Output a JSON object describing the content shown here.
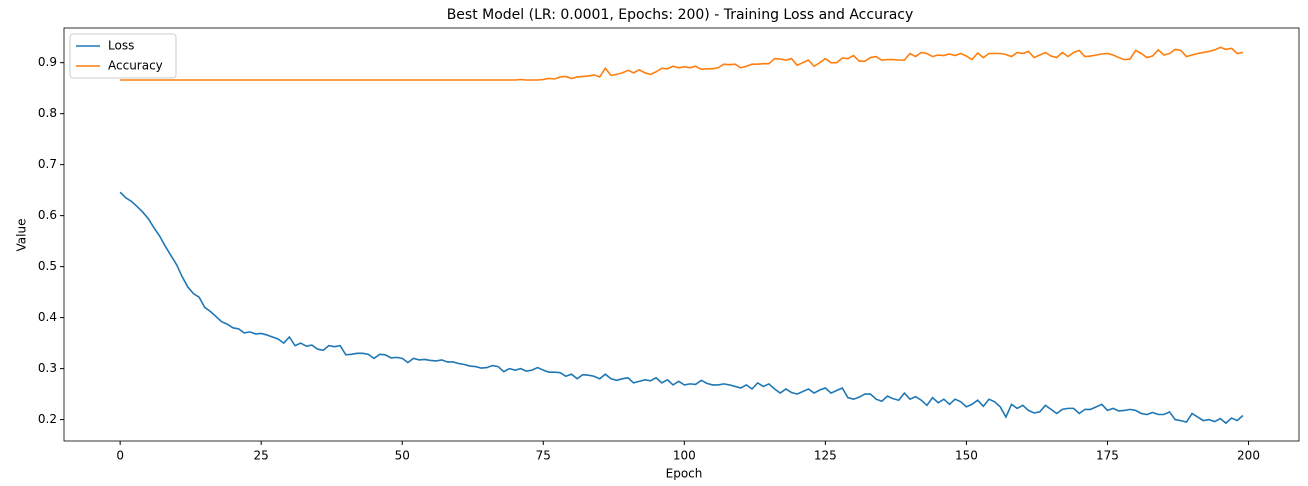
{
  "chart_data": {
    "type": "line",
    "title": "Best Model (LR: 0.0001, Epochs: 200) - Training Loss and Accuracy",
    "x_label": "Epoch",
    "y_label": "Value",
    "x": [
      0,
      1,
      2,
      3,
      4,
      5,
      6,
      7,
      8,
      9,
      10,
      11,
      12,
      13,
      14,
      15,
      16,
      17,
      18,
      19,
      20,
      21,
      22,
      23,
      24,
      25,
      26,
      27,
      28,
      29,
      30,
      31,
      32,
      33,
      34,
      35,
      36,
      37,
      38,
      39,
      40,
      41,
      42,
      43,
      44,
      45,
      46,
      47,
      48,
      49,
      50,
      51,
      52,
      53,
      54,
      55,
      56,
      57,
      58,
      59,
      60,
      61,
      62,
      63,
      64,
      65,
      66,
      67,
      68,
      69,
      70,
      71,
      72,
      73,
      74,
      75,
      76,
      77,
      78,
      79,
      80,
      81,
      82,
      83,
      84,
      85,
      86,
      87,
      88,
      89,
      90,
      91,
      92,
      93,
      94,
      95,
      96,
      97,
      98,
      99,
      100,
      101,
      102,
      103,
      104,
      105,
      106,
      107,
      108,
      109,
      110,
      111,
      112,
      113,
      114,
      115,
      116,
      117,
      118,
      119,
      120,
      121,
      122,
      123,
      124,
      125,
      126,
      127,
      128,
      129,
      130,
      131,
      132,
      133,
      134,
      135,
      136,
      137,
      138,
      139,
      140,
      141,
      142,
      143,
      144,
      145,
      146,
      147,
      148,
      149,
      150,
      151,
      152,
      153,
      154,
      155,
      156,
      157,
      158,
      159,
      160,
      161,
      162,
      163,
      164,
      165,
      166,
      167,
      168,
      169,
      170,
      171,
      172,
      173,
      174,
      175,
      176,
      177,
      178,
      179,
      180,
      181,
      182,
      183,
      184,
      185,
      186,
      187,
      188,
      189,
      190,
      191,
      192,
      193,
      194,
      195,
      196,
      197,
      198,
      199
    ],
    "series": [
      {
        "name": "Loss",
        "color": "#1f77b4",
        "values": [
          0.646,
          0.635,
          0.628,
          0.618,
          0.607,
          0.594,
          0.576,
          0.56,
          0.54,
          0.522,
          0.504,
          0.48,
          0.46,
          0.447,
          0.44,
          0.42,
          0.412,
          0.402,
          0.392,
          0.387,
          0.38,
          0.378,
          0.37,
          0.372,
          0.368,
          0.369,
          0.366,
          0.362,
          0.358,
          0.35,
          0.362,
          0.345,
          0.35,
          0.344,
          0.346,
          0.338,
          0.336,
          0.345,
          0.343,
          0.345,
          0.327,
          0.328,
          0.33,
          0.33,
          0.328,
          0.32,
          0.328,
          0.327,
          0.321,
          0.322,
          0.32,
          0.312,
          0.32,
          0.317,
          0.318,
          0.316,
          0.315,
          0.317,
          0.313,
          0.313,
          0.31,
          0.308,
          0.305,
          0.304,
          0.301,
          0.302,
          0.306,
          0.304,
          0.294,
          0.3,
          0.297,
          0.3,
          0.295,
          0.297,
          0.302,
          0.297,
          0.293,
          0.293,
          0.292,
          0.285,
          0.289,
          0.28,
          0.288,
          0.287,
          0.285,
          0.28,
          0.289,
          0.28,
          0.277,
          0.28,
          0.282,
          0.272,
          0.275,
          0.278,
          0.276,
          0.282,
          0.272,
          0.278,
          0.268,
          0.275,
          0.268,
          0.27,
          0.269,
          0.277,
          0.271,
          0.268,
          0.268,
          0.27,
          0.268,
          0.265,
          0.262,
          0.268,
          0.26,
          0.272,
          0.265,
          0.27,
          0.26,
          0.252,
          0.26,
          0.253,
          0.25,
          0.255,
          0.26,
          0.252,
          0.258,
          0.262,
          0.252,
          0.257,
          0.262,
          0.243,
          0.24,
          0.244,
          0.25,
          0.25,
          0.24,
          0.236,
          0.246,
          0.241,
          0.238,
          0.252,
          0.24,
          0.245,
          0.238,
          0.228,
          0.243,
          0.233,
          0.24,
          0.23,
          0.24,
          0.235,
          0.225,
          0.23,
          0.238,
          0.226,
          0.24,
          0.235,
          0.225,
          0.205,
          0.23,
          0.222,
          0.228,
          0.218,
          0.213,
          0.215,
          0.228,
          0.22,
          0.212,
          0.22,
          0.222,
          0.222,
          0.212,
          0.22,
          0.22,
          0.225,
          0.23,
          0.218,
          0.222,
          0.217,
          0.218,
          0.22,
          0.218,
          0.212,
          0.21,
          0.214,
          0.21,
          0.21,
          0.215,
          0.2,
          0.198,
          0.195,
          0.212,
          0.205,
          0.198,
          0.2,
          0.196,
          0.202,
          0.193,
          0.203,
          0.198,
          0.208
        ]
      },
      {
        "name": "Accuracy",
        "color": "#ff7f0e",
        "values": [
          0.866,
          0.866,
          0.866,
          0.866,
          0.866,
          0.866,
          0.866,
          0.866,
          0.866,
          0.866,
          0.866,
          0.866,
          0.866,
          0.866,
          0.866,
          0.866,
          0.866,
          0.866,
          0.866,
          0.866,
          0.866,
          0.866,
          0.866,
          0.866,
          0.866,
          0.866,
          0.866,
          0.866,
          0.866,
          0.866,
          0.866,
          0.866,
          0.866,
          0.866,
          0.866,
          0.866,
          0.866,
          0.866,
          0.866,
          0.866,
          0.866,
          0.866,
          0.866,
          0.866,
          0.866,
          0.866,
          0.866,
          0.866,
          0.866,
          0.866,
          0.866,
          0.866,
          0.866,
          0.866,
          0.866,
          0.866,
          0.866,
          0.866,
          0.866,
          0.866,
          0.866,
          0.866,
          0.866,
          0.866,
          0.866,
          0.866,
          0.866,
          0.866,
          0.866,
          0.866,
          0.866,
          0.867,
          0.866,
          0.866,
          0.866,
          0.867,
          0.869,
          0.868,
          0.872,
          0.873,
          0.869,
          0.872,
          0.873,
          0.874,
          0.876,
          0.872,
          0.889,
          0.875,
          0.877,
          0.88,
          0.885,
          0.88,
          0.886,
          0.88,
          0.877,
          0.882,
          0.889,
          0.888,
          0.893,
          0.89,
          0.892,
          0.89,
          0.893,
          0.887,
          0.888,
          0.888,
          0.89,
          0.897,
          0.896,
          0.897,
          0.89,
          0.893,
          0.897,
          0.897,
          0.898,
          0.898,
          0.908,
          0.907,
          0.905,
          0.908,
          0.895,
          0.9,
          0.905,
          0.893,
          0.9,
          0.908,
          0.9,
          0.9,
          0.909,
          0.908,
          0.914,
          0.903,
          0.903,
          0.91,
          0.912,
          0.905,
          0.906,
          0.906,
          0.905,
          0.905,
          0.918,
          0.912,
          0.92,
          0.918,
          0.912,
          0.915,
          0.914,
          0.917,
          0.914,
          0.918,
          0.913,
          0.906,
          0.919,
          0.91,
          0.918,
          0.918,
          0.918,
          0.916,
          0.912,
          0.92,
          0.918,
          0.922,
          0.91,
          0.915,
          0.92,
          0.913,
          0.91,
          0.92,
          0.912,
          0.92,
          0.924,
          0.912,
          0.913,
          0.915,
          0.917,
          0.918,
          0.915,
          0.91,
          0.906,
          0.907,
          0.924,
          0.918,
          0.91,
          0.913,
          0.925,
          0.915,
          0.918,
          0.926,
          0.924,
          0.912,
          0.915,
          0.918,
          0.92,
          0.922,
          0.925,
          0.93,
          0.926,
          0.928,
          0.918,
          0.92
        ]
      }
    ],
    "xlim": [
      -9.95,
      208.95
    ],
    "xticks": [
      0,
      25,
      50,
      75,
      100,
      125,
      150,
      175,
      200
    ],
    "ylim": [
      0.158,
      0.968
    ],
    "yticks": [
      0.2,
      0.3,
      0.4,
      0.5,
      0.6,
      0.7,
      0.8,
      0.9
    ],
    "legend": "upper left",
    "grid": false
  }
}
